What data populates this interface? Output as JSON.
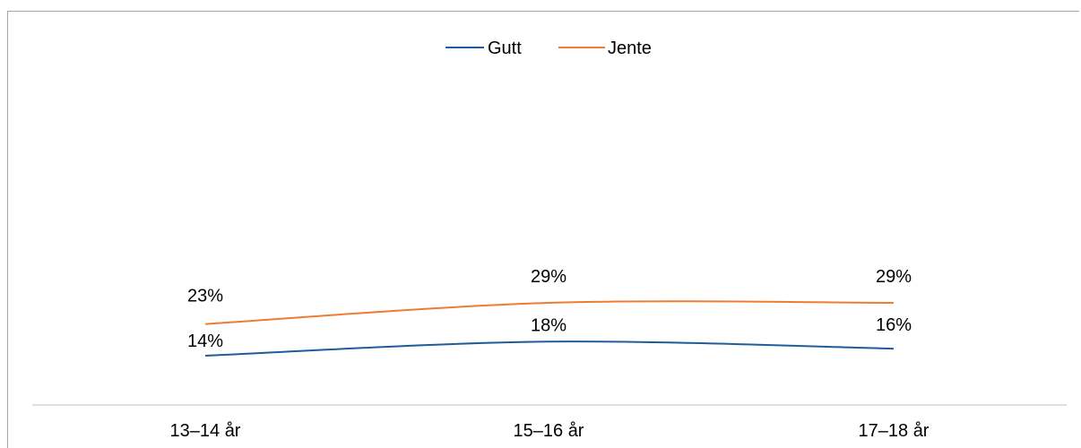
{
  "chart_data": {
    "type": "line",
    "categories": [
      "13–14 år",
      "15–16 år",
      "17–18 år"
    ],
    "series": [
      {
        "name": "Gutt",
        "values": [
          14,
          18,
          16
        ],
        "labels": [
          "14%",
          "18%",
          "16%"
        ],
        "color": "#1f5c99"
      },
      {
        "name": "Jente",
        "values": [
          23,
          29,
          29
        ],
        "labels": [
          "23%",
          "29%",
          "29%"
        ],
        "color": "#ed7d31"
      }
    ],
    "ylim": [
      0,
      100
    ],
    "legend": "top-center",
    "grid": false,
    "axis_color": "#d9e1e4",
    "smooth": true
  }
}
